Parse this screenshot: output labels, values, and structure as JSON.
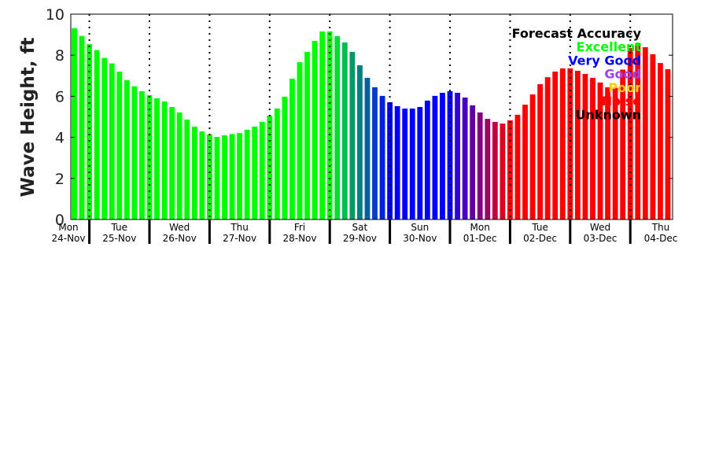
{
  "chart_data": {
    "type": "bar",
    "title": "",
    "xlabel": "",
    "ylabel": "Wave Height, ft",
    "ylim": [
      0,
      10
    ],
    "yticks": [
      0,
      2,
      4,
      6,
      8,
      10
    ],
    "grid": false,
    "interval_hours": 3,
    "first_bar": "Mon 24-Nov 18:00",
    "days": [
      {
        "dow": "Mon",
        "date": "24-Nov"
      },
      {
        "dow": "Tue",
        "date": "25-Nov"
      },
      {
        "dow": "Wed",
        "date": "26-Nov"
      },
      {
        "dow": "Thu",
        "date": "27-Nov"
      },
      {
        "dow": "Fri",
        "date": "28-Nov"
      },
      {
        "dow": "Sat",
        "date": "29-Nov"
      },
      {
        "dow": "Sun",
        "date": "30-Nov"
      },
      {
        "dow": "Mon",
        "date": "01-Dec"
      },
      {
        "dow": "Tue",
        "date": "02-Dec"
      },
      {
        "dow": "Wed",
        "date": "03-Dec"
      },
      {
        "dow": "Thu",
        "date": "04-Dec"
      }
    ],
    "values": [
      9.32,
      8.94,
      8.54,
      8.25,
      7.87,
      7.6,
      7.2,
      6.79,
      6.49,
      6.25,
      6.05,
      5.9,
      5.75,
      5.48,
      5.21,
      4.87,
      4.52,
      4.29,
      4.14,
      4.02,
      4.1,
      4.16,
      4.21,
      4.37,
      4.52,
      4.75,
      5.06,
      5.4,
      5.98,
      6.86,
      7.66,
      8.16,
      8.7,
      9.16,
      9.16,
      8.93,
      8.62,
      8.16,
      7.51,
      6.9,
      6.44,
      6.02,
      5.71,
      5.52,
      5.4,
      5.4,
      5.48,
      5.79,
      6.02,
      6.17,
      6.25,
      6.17,
      5.94,
      5.56,
      5.21,
      4.9,
      4.75,
      4.67,
      4.83,
      5.1,
      5.59,
      6.09,
      6.59,
      6.93,
      7.2,
      7.36,
      7.36,
      7.24,
      7.09,
      6.9,
      6.67,
      6.44,
      6.41,
      7.3,
      8.35,
      8.58,
      8.39,
      8.05,
      7.62,
      7.32
    ],
    "colors": [
      "#00ff00",
      "#00ff00",
      "#00ff00",
      "#00ff00",
      "#00ff00",
      "#00ff00",
      "#00ff00",
      "#00ff00",
      "#00ff00",
      "#00ff00",
      "#00ff00",
      "#00ff00",
      "#00ff00",
      "#00ff00",
      "#00ff00",
      "#00ff00",
      "#00ff00",
      "#00ff00",
      "#00ff00",
      "#00ff00",
      "#00ff00",
      "#00ff00",
      "#00ff00",
      "#00ff00",
      "#00ff00",
      "#00ff00",
      "#00ff00",
      "#00ff00",
      "#00ff00",
      "#00ff00",
      "#00ff00",
      "#00ff00",
      "#00ff00",
      "#00ff00",
      "#00ff00",
      "#00dd33",
      "#00bb4d",
      "#009966",
      "#007f80",
      "#0060a0",
      "#0040c0",
      "#0020e0",
      "#0000ff",
      "#0000ff",
      "#0000ff",
      "#0000ff",
      "#0000ff",
      "#0000ff",
      "#0000ff",
      "#0000ff",
      "#0000ff",
      "#3000e0",
      "#4a00c0",
      "#6000a0",
      "#800080",
      "#a00060",
      "#c00040",
      "#e00020",
      "#ff0000",
      "#ff0000",
      "#ff0000",
      "#ff0000",
      "#ff0000",
      "#ff0000",
      "#ff0000",
      "#ff0000",
      "#ff0000",
      "#ff0000",
      "#ff0000",
      "#ff0000",
      "#ff0000",
      "#ff0000",
      "#ff0000",
      "#ff0000",
      "#ff0000",
      "#ff0000",
      "#ff0000",
      "#ff0000",
      "#ff0000",
      "#ff0000"
    ],
    "legend": {
      "placement": "top-right",
      "title": "Forecast Accuracy",
      "entries": [
        {
          "label": "Excellent",
          "color": "#00ff00"
        },
        {
          "label": "Very Good",
          "color": "#0000ff"
        },
        {
          "label": "Good",
          "color": "#a040ff"
        },
        {
          "label": "Poor",
          "color": "#ffcc00"
        },
        {
          "label": "Noise",
          "color": "#ff0000"
        },
        {
          "label": "Unknown",
          "color": "#000000"
        }
      ]
    }
  }
}
